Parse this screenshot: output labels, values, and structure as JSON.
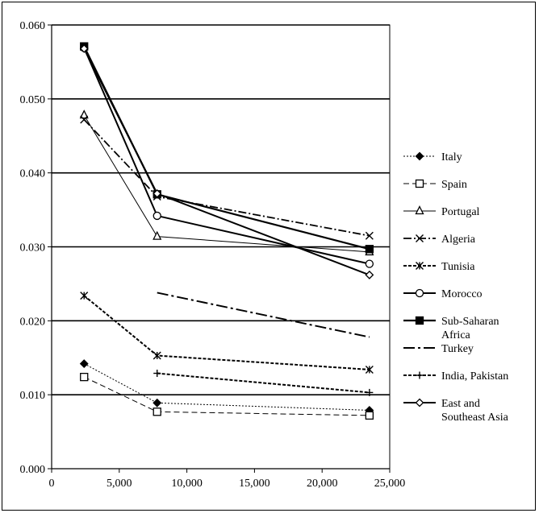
{
  "chart_data": {
    "type": "line",
    "title": "",
    "xlabel": "",
    "ylabel": "",
    "xlim": [
      0,
      25000
    ],
    "ylim": [
      0,
      0.06
    ],
    "x_ticks": [
      "0",
      "5,000",
      "10,000",
      "15,000",
      "20,000",
      "25,000"
    ],
    "y_ticks": [
      "0.000",
      "0.010",
      "0.020",
      "0.030",
      "0.040",
      "0.050",
      "0.060"
    ],
    "grid": "horizontal",
    "legend_position": "right",
    "series": [
      {
        "name": "Italy",
        "x": [
          2400,
          7800,
          23500
        ],
        "y": [
          0.0142,
          0.0089,
          0.0079
        ],
        "dash": "2,2",
        "width": 1,
        "marker": "diamond-filled"
      },
      {
        "name": "Spain",
        "x": [
          2400,
          7800,
          23500
        ],
        "y": [
          0.0124,
          0.0077,
          0.0072
        ],
        "dash": "7,4",
        "width": 1,
        "marker": "square-open"
      },
      {
        "name": "Portugal",
        "x": [
          2400,
          7800,
          23500
        ],
        "y": [
          0.0478,
          0.0314,
          0.0293
        ],
        "dash": "",
        "width": 1,
        "marker": "triangle-open"
      },
      {
        "name": "Algeria",
        "x": [
          2400,
          7800,
          23500
        ],
        "y": [
          0.0472,
          0.0368,
          0.0315
        ],
        "dash": "10,3,2,3",
        "width": 1.8,
        "marker": "x"
      },
      {
        "name": "Tunisia",
        "x": [
          2400,
          7800,
          23500
        ],
        "y": [
          0.0234,
          0.0153,
          0.0134
        ],
        "dash": "4,2",
        "width": 2,
        "marker": "asterisk"
      },
      {
        "name": "Morocco",
        "x": [
          2400,
          7800,
          23500
        ],
        "y": [
          0.0569,
          0.0342,
          0.0277
        ],
        "dash": "",
        "width": 2,
        "marker": "circle-open"
      },
      {
        "name": "Sub-Saharan Africa",
        "legend_lines": [
          "Sub-Saharan",
          "Africa"
        ],
        "x": [
          2400,
          7800,
          23500
        ],
        "y": [
          0.0571,
          0.0371,
          0.0297
        ],
        "dash": "",
        "width": 2.2,
        "marker": "square-filled"
      },
      {
        "name": "Turkey",
        "x": [
          7800,
          23500
        ],
        "y": [
          0.0238,
          0.0178
        ],
        "dash": "14,4,3,4",
        "width": 2,
        "marker": "none"
      },
      {
        "name": "India, Pakistan",
        "x": [
          7800,
          23500
        ],
        "y": [
          0.0129,
          0.0103
        ],
        "dash": "4,2",
        "width": 2,
        "marker": "plus"
      },
      {
        "name": "East and Southeast Asia",
        "legend_lines": [
          "East and",
          "Southeast Asia"
        ],
        "x": [
          2400,
          7800,
          23500
        ],
        "y": [
          0.0568,
          0.0372,
          0.0262
        ],
        "dash": "",
        "width": 2,
        "marker": "diamond-open"
      }
    ]
  }
}
